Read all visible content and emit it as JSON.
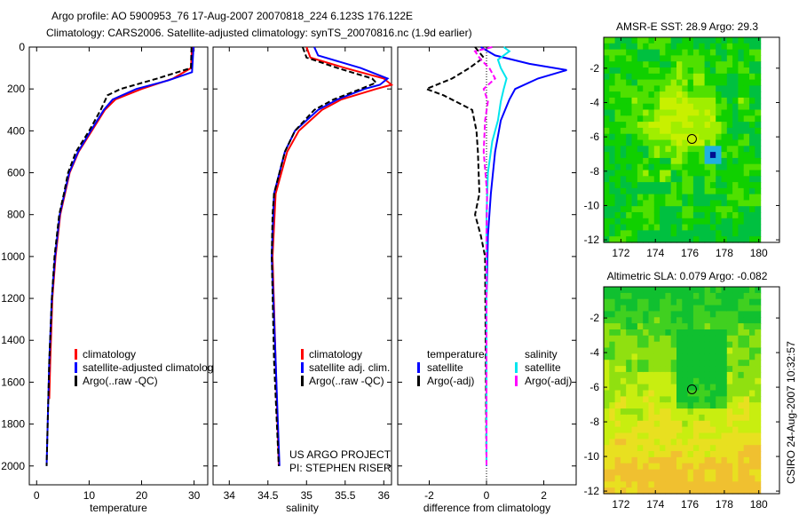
{
  "title_line1": "Argo profile: AO 5900953_76 17-Aug-2007 20070818_224 6.123S 176.122E",
  "title_line2": "Climatology: CARS2006. Satellite-adjusted climatology: synTS_20070816.nc (1.9d earlier)",
  "project_line1": "US ARGO PROJECT",
  "project_line2": "PI: STEPHEN RISER",
  "timestamp": "CSIRO 24-Aug-2007 10:32:57",
  "chart_data": [
    {
      "type": "line",
      "id": "temperature",
      "xlabel": "temperature",
      "ylabel": "",
      "xlim": [
        -1.4,
        32.6
      ],
      "ylim": [
        2090,
        0
      ],
      "xticks": [
        0,
        10,
        20,
        30
      ],
      "yticks": [
        0,
        200,
        400,
        600,
        800,
        1000,
        1200,
        1400,
        1600,
        1800,
        2000
      ],
      "legend": [
        "climatology",
        "satellite-adjusted climatology",
        "Argo(..raw -QC)"
      ],
      "series": [
        {
          "name": "climatology",
          "color": "#ff0000",
          "depth": [
            0,
            100,
            150,
            200,
            250,
            300,
            400,
            500,
            600,
            800,
            1000,
            1200,
            1500,
            1680
          ],
          "values": [
            29.6,
            29.4,
            26,
            20,
            15,
            13,
            10.5,
            8,
            6.3,
            4.5,
            3.6,
            3,
            2.6,
            2.4
          ]
        },
        {
          "name": "satellite-adjusted climatology",
          "color": "#0000ff",
          "depth": [
            0,
            120,
            160,
            200,
            250,
            300,
            400,
            500,
            600,
            800,
            1000,
            1200,
            1500,
            2000
          ],
          "values": [
            29.9,
            29.6,
            25,
            19,
            14.5,
            12.8,
            10.3,
            7.9,
            6.2,
            4.4,
            3.5,
            2.9,
            2.4,
            1.9
          ]
        },
        {
          "name": "Argo(..raw -QC)",
          "color": "#000000",
          "depth": [
            0,
            100,
            150,
            200,
            230,
            300,
            400,
            500,
            600,
            700,
            800,
            1000,
            1200,
            1500,
            2000
          ],
          "values": [
            29.5,
            29.4,
            23,
            16,
            13.5,
            12.2,
            10,
            7.5,
            6,
            5.2,
            4.3,
            3.4,
            2.9,
            2.4,
            1.9
          ]
        }
      ]
    },
    {
      "type": "line",
      "id": "salinity",
      "xlabel": "salinity",
      "xlim": [
        33.79,
        36.1
      ],
      "ylim": [
        2090,
        0
      ],
      "xticks": [
        34,
        34.5,
        35,
        35.5,
        36
      ],
      "legend": [
        "climatology",
        "satellite adj. clim.",
        "Argo(..raw -QC)"
      ],
      "series": [
        {
          "name": "climatology",
          "color": "#ff0000",
          "depth": [
            0,
            50,
            100,
            150,
            180,
            200,
            250,
            300,
            400,
            500,
            700,
            1000,
            1500,
            2000
          ],
          "values": [
            35.0,
            35.05,
            35.5,
            36.0,
            36.1,
            35.9,
            35.45,
            35.2,
            34.9,
            34.75,
            34.6,
            34.56,
            34.6,
            34.64
          ]
        },
        {
          "name": "satellite adj. clim.",
          "color": "#0000ff",
          "depth": [
            0,
            40,
            100,
            150,
            180,
            200,
            250,
            300,
            400,
            500,
            700,
            1000,
            1500,
            2000
          ],
          "values": [
            35.1,
            35.15,
            35.7,
            36.05,
            35.95,
            35.75,
            35.4,
            35.15,
            34.85,
            34.72,
            34.58,
            34.55,
            34.6,
            34.65
          ]
        },
        {
          "name": "Argo(..raw -QC)",
          "color": "#000000",
          "depth": [
            0,
            50,
            100,
            150,
            170,
            200,
            250,
            300,
            400,
            500,
            700,
            800,
            1000,
            1500,
            2000
          ],
          "values": [
            34.95,
            35.0,
            35.4,
            35.85,
            35.9,
            35.7,
            35.35,
            35.1,
            34.85,
            34.72,
            34.58,
            34.56,
            34.55,
            34.58,
            34.64
          ]
        }
      ]
    },
    {
      "type": "line",
      "id": "difference",
      "xlabel": "difference from climatology",
      "xlim": [
        -3.1,
        3.13
      ],
      "ylim": [
        2090,
        0
      ],
      "xticks": [
        -2,
        0,
        2
      ],
      "legend_groups": [
        {
          "heading": "temperature",
          "items": [
            "satellite",
            "Argo(-adj)"
          ]
        },
        {
          "heading": "salinity",
          "items": [
            "satellite",
            "Argo(-adj)"
          ]
        }
      ],
      "series": [
        {
          "name": "temperature satellite",
          "color": "#0000ff",
          "depth": [
            0,
            40,
            80,
            110,
            150,
            200,
            250,
            350,
            500,
            700,
            900,
            1200,
            2000
          ],
          "values": [
            -0.2,
            0.3,
            1.5,
            2.8,
            1.8,
            1.0,
            0.8,
            0.5,
            0.3,
            0.15,
            0.05,
            0,
            0
          ]
        },
        {
          "name": "temperature Argo(-adj)",
          "color": "#000000",
          "depth": [
            0,
            50,
            100,
            150,
            200,
            230,
            300,
            400,
            500,
            700,
            800,
            900,
            1000,
            2000
          ],
          "values": [
            -0.4,
            -0.1,
            -0.6,
            -1.2,
            -2.1,
            -1.5,
            -0.5,
            -0.35,
            -0.3,
            -0.25,
            -0.4,
            -0.2,
            -0.05,
            0
          ]
        },
        {
          "name": "salinity satellite",
          "color": "#00e5ee",
          "depth": [
            0,
            20,
            60,
            100,
            150,
            200,
            260,
            350,
            450,
            600,
            800,
            2000
          ],
          "values": [
            0.6,
            0.8,
            0.4,
            0.5,
            0.7,
            0.6,
            0.5,
            0.4,
            0.2,
            0.05,
            0,
            0
          ]
        },
        {
          "name": "salinity Argo(-adj)",
          "color": "#ff00ff",
          "depth": [
            0,
            20,
            60,
            100,
            150,
            200,
            260,
            350,
            500,
            700,
            900,
            2000
          ],
          "values": [
            0.2,
            -0.4,
            -0.2,
            0.1,
            0.3,
            -0.1,
            0.05,
            -0.05,
            -0.1,
            0.02,
            0,
            0
          ]
        }
      ]
    },
    {
      "type": "heatmap",
      "id": "sst-map",
      "title": "AMSR-E SST: 28.9 Argo: 29.3",
      "xlim": [
        171,
        181.2
      ],
      "ylim": [
        -12.15,
        -0.2
      ],
      "xticks": [
        172,
        174,
        176,
        178,
        180
      ],
      "yticks": [
        -2,
        -4,
        -6,
        -8,
        -10,
        -12
      ],
      "marker": {
        "lon": 176.122,
        "lat": -6.123
      }
    },
    {
      "type": "heatmap",
      "id": "sla-map",
      "title": "Altimetric SLA: 0.079 Argo: -0.082",
      "xlim": [
        171,
        181.2
      ],
      "ylim": [
        -12.15,
        -0.2
      ],
      "xticks": [
        172,
        174,
        176,
        178,
        180
      ],
      "yticks": [
        -2,
        -4,
        -6,
        -8,
        -10,
        -12
      ],
      "marker": {
        "lon": 176.122,
        "lat": -6.123
      }
    }
  ]
}
